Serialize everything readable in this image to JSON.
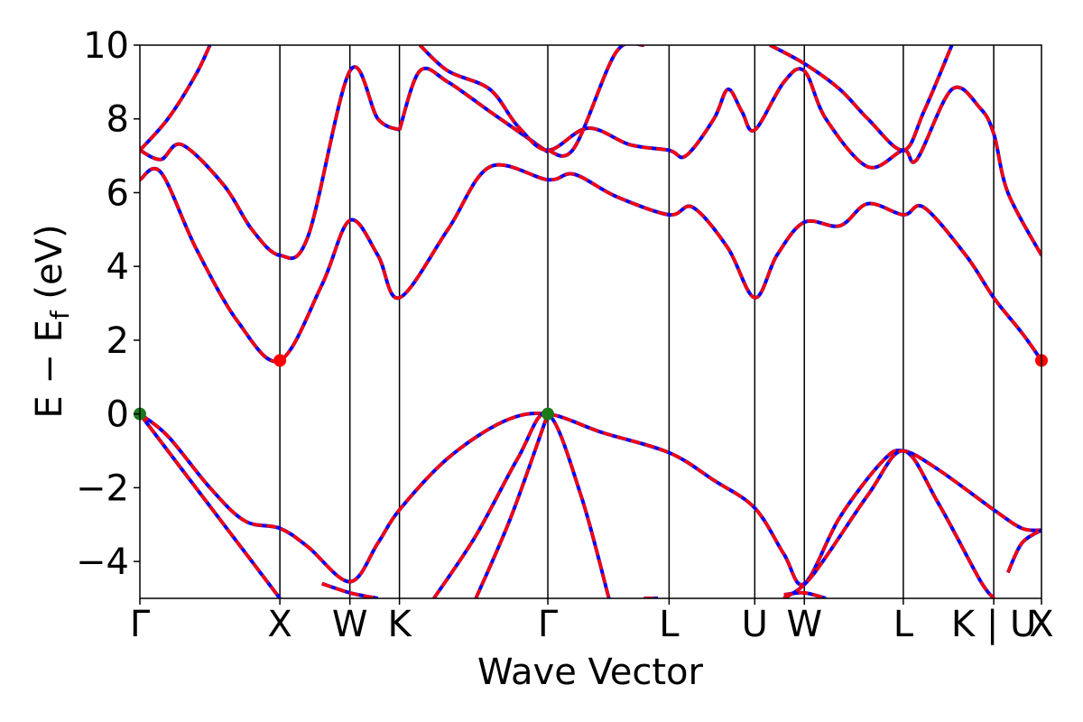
{
  "chart_data": {
    "type": "line",
    "xlabel": "Wave Vector",
    "ylabel": "E − E_f (eV)",
    "ylabel_main": "E − E",
    "ylabel_sub": "f",
    "ylabel_tail": " (eV)",
    "ylim": [
      -5,
      10
    ],
    "yticks": [
      -4,
      -2,
      0,
      2,
      4,
      6,
      8,
      10
    ],
    "ytick_labels": [
      "−4",
      "−2",
      "0",
      "2",
      "4",
      "6",
      "8",
      "10"
    ],
    "xlim": [
      0,
      6.44
    ],
    "kpath": [
      {
        "label": "Γ",
        "x": 0.0
      },
      {
        "label": "X",
        "x": 1.0
      },
      {
        "label": "W",
        "x": 1.5
      },
      {
        "label": "K",
        "x": 1.854
      },
      {
        "label": "Γ",
        "x": 2.914
      },
      {
        "label": "L",
        "x": 3.78
      },
      {
        "label": "U",
        "x": 4.392
      },
      {
        "label": "W",
        "x": 4.746
      },
      {
        "label": "L",
        "x": 5.453
      },
      {
        "label": "K | U",
        "x": 6.099
      },
      {
        "label": "X",
        "x": 6.44
      }
    ],
    "grid": false,
    "legend": "none",
    "series": [
      {
        "values": [
          [
            0,
            7.15
          ],
          [
            0.15,
            6.9
          ],
          [
            0.3,
            7.3
          ],
          [
            0.6,
            6.2
          ],
          [
            0.8,
            5.0
          ],
          [
            1.0,
            4.3
          ],
          [
            1.2,
            4.8
          ],
          [
            1.5,
            9.3
          ],
          [
            1.7,
            8.0
          ],
          [
            1.854,
            7.7
          ]
        ]
      },
      {
        "values": [
          [
            0,
            7.15
          ],
          [
            0.2,
            8.0
          ],
          [
            0.4,
            9.2
          ],
          [
            0.5,
            10.0
          ]
        ]
      },
      {
        "values": [
          [
            0,
            6.35
          ],
          [
            0.15,
            6.55
          ],
          [
            0.4,
            4.5
          ],
          [
            0.7,
            2.5
          ],
          [
            1.0,
            1.45
          ],
          [
            1.3,
            3.5
          ],
          [
            1.5,
            5.25
          ],
          [
            1.7,
            4.3
          ],
          [
            1.854,
            3.15
          ],
          [
            2.2,
            5.0
          ],
          [
            2.5,
            6.7
          ],
          [
            2.914,
            6.35
          ],
          [
            3.1,
            6.5
          ],
          [
            3.4,
            5.9
          ],
          [
            3.78,
            5.4
          ],
          [
            3.95,
            5.6
          ],
          [
            4.2,
            4.5
          ],
          [
            4.392,
            3.15
          ],
          [
            4.55,
            4.3
          ],
          [
            4.746,
            5.2
          ],
          [
            5.0,
            5.1
          ],
          [
            5.2,
            5.7
          ],
          [
            5.453,
            5.4
          ],
          [
            5.6,
            5.6
          ],
          [
            5.9,
            4.3
          ],
          [
            6.099,
            3.15
          ],
          [
            6.3,
            2.2
          ],
          [
            6.44,
            1.45
          ]
        ]
      },
      {
        "values": [
          [
            1.854,
            7.7
          ],
          [
            2.0,
            9.3
          ],
          [
            2.2,
            9.0
          ],
          [
            2.5,
            8.2
          ],
          [
            2.914,
            7.1
          ]
        ]
      },
      {
        "values": [
          [
            2.0,
            10.0
          ],
          [
            2.2,
            9.3
          ],
          [
            2.5,
            8.8
          ],
          [
            2.7,
            7.8
          ],
          [
            2.914,
            7.15
          ],
          [
            3.2,
            7.75
          ],
          [
            3.5,
            7.3
          ],
          [
            3.78,
            7.15
          ],
          [
            3.9,
            7.0
          ],
          [
            4.1,
            8.0
          ],
          [
            4.2,
            8.8
          ],
          [
            4.3,
            8.2
          ],
          [
            4.392,
            7.7
          ],
          [
            4.6,
            9.0
          ],
          [
            4.746,
            9.3
          ],
          [
            4.9,
            8.0
          ],
          [
            5.2,
            6.7
          ],
          [
            5.453,
            7.15
          ],
          [
            5.55,
            6.9
          ],
          [
            5.8,
            8.8
          ],
          [
            6.0,
            8.3
          ],
          [
            6.099,
            7.6
          ],
          [
            6.2,
            6.0
          ],
          [
            6.44,
            4.3
          ]
        ]
      },
      {
        "values": [
          [
            2.914,
            7.15
          ],
          [
            3.1,
            7.2
          ],
          [
            3.4,
            9.8
          ],
          [
            3.6,
            10.0
          ]
        ]
      },
      {
        "values": [
          [
            4.5,
            10.0
          ],
          [
            4.746,
            9.5
          ],
          [
            5.0,
            8.8
          ],
          [
            5.2,
            8.0
          ],
          [
            5.453,
            7.15
          ],
          [
            5.6,
            8.2
          ],
          [
            5.8,
            10.0
          ]
        ]
      },
      {
        "values": [
          [
            0,
            0.0
          ],
          [
            0.2,
            -0.6
          ],
          [
            0.5,
            -2.0
          ],
          [
            0.75,
            -2.9
          ],
          [
            1.0,
            -3.1
          ],
          [
            1.2,
            -3.6
          ],
          [
            1.5,
            -4.55
          ],
          [
            1.7,
            -3.5
          ],
          [
            1.854,
            -2.6
          ],
          [
            2.2,
            -1.2
          ],
          [
            2.6,
            -0.2
          ],
          [
            2.914,
            0.0
          ],
          [
            3.3,
            -0.5
          ],
          [
            3.78,
            -1.05
          ],
          [
            4.1,
            -1.8
          ],
          [
            4.392,
            -2.55
          ],
          [
            4.6,
            -3.8
          ],
          [
            4.746,
            -4.6
          ],
          [
            5.0,
            -2.8
          ],
          [
            5.3,
            -1.3
          ],
          [
            5.453,
            -1.0
          ],
          [
            5.7,
            -1.5
          ],
          [
            6.099,
            -2.6
          ],
          [
            6.3,
            -3.1
          ],
          [
            6.44,
            -3.15
          ]
        ]
      },
      {
        "values": [
          [
            0,
            0.0
          ],
          [
            0.3,
            -1.5
          ],
          [
            0.6,
            -3.0
          ],
          [
            0.8,
            -4.0
          ],
          [
            1.0,
            -5.0
          ]
        ]
      },
      {
        "values": [
          [
            1.3,
            -4.6
          ],
          [
            1.5,
            -4.85
          ],
          [
            1.7,
            -5.0
          ]
        ]
      },
      {
        "values": [
          [
            2.1,
            -5.0
          ],
          [
            2.4,
            -3.3
          ],
          [
            2.7,
            -1.2
          ],
          [
            2.914,
            0.0
          ],
          [
            3.15,
            -2.2
          ],
          [
            3.35,
            -5.0
          ]
        ]
      },
      {
        "values": [
          [
            2.4,
            -5.0
          ],
          [
            2.65,
            -2.8
          ],
          [
            2.914,
            0.0
          ]
        ]
      },
      {
        "values": [
          [
            4.6,
            -4.9
          ],
          [
            4.746,
            -4.85
          ],
          [
            4.9,
            -5.0
          ]
        ]
      },
      {
        "values": [
          [
            4.6,
            -5.0
          ],
          [
            4.8,
            -4.4
          ],
          [
            5.2,
            -2.2
          ],
          [
            5.453,
            -1.0
          ],
          [
            5.7,
            -2.4
          ],
          [
            6.0,
            -4.5
          ],
          [
            6.1,
            -5.0
          ]
        ]
      },
      {
        "values": [
          [
            6.2,
            -4.3
          ],
          [
            6.3,
            -3.5
          ],
          [
            6.44,
            -3.15
          ]
        ]
      },
      {
        "values": [
          [
            3.6,
            -5.0
          ],
          [
            3.7,
            -5.0
          ]
        ]
      }
    ],
    "markers": [
      {
        "x": 0.0,
        "y": 0.0,
        "color": "#1a7a1a"
      },
      {
        "x": 2.914,
        "y": 0.0,
        "color": "#1a7a1a"
      },
      {
        "x": 1.0,
        "y": 1.45,
        "color": "#ff0000"
      },
      {
        "x": 6.44,
        "y": 1.45,
        "color": "#ff0000"
      }
    ],
    "colors": {
      "line_under": "#0000ff",
      "line_over": "#ff0000",
      "axis": "#000000"
    }
  }
}
